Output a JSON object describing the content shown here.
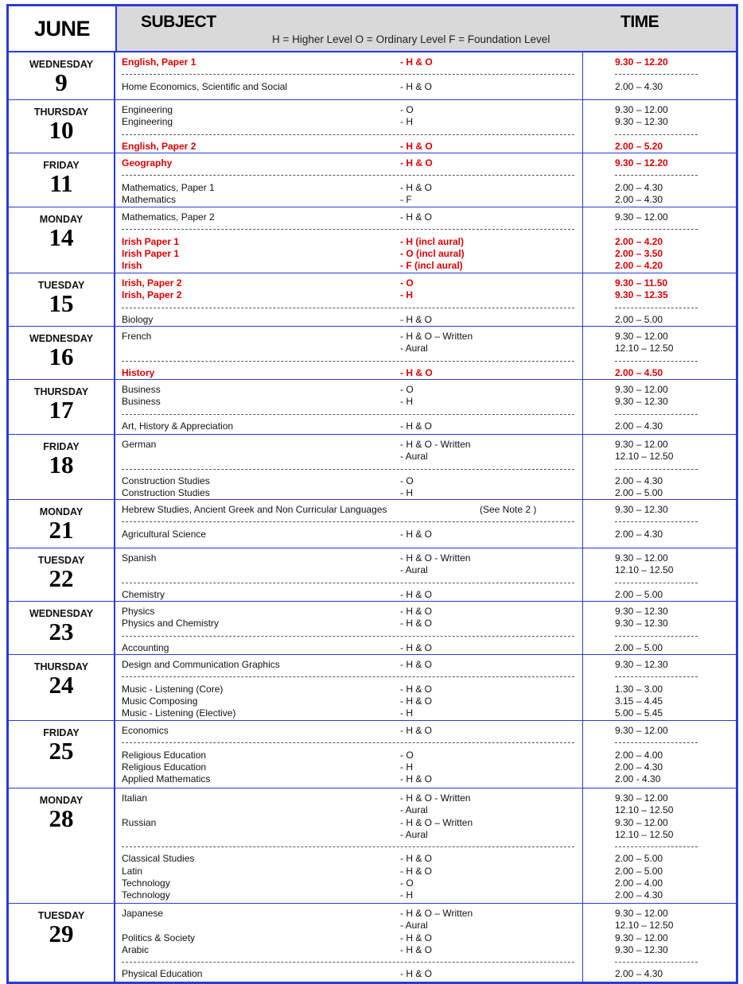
{
  "header": {
    "month": "JUNE",
    "subject": "SUBJECT",
    "time": "TIME",
    "legend": "H = Higher Level  O = Ordinary Level  F = Foundation Level"
  },
  "colors": {
    "border": "#2a3ad8",
    "header_bg": "#d9d9d9",
    "highlight": "#e00000"
  },
  "days": [
    {
      "name": "WEDNESDAY",
      "num": "9",
      "lines": [
        {
          "s": "English, Paper 1",
          "l": "- H & O",
          "t": "9.30 – 12.20",
          "red": true
        },
        {
          "sep": true
        },
        {
          "s": "Home Economics, Scientific and Social",
          "l": "- H & O",
          "t": "2.00 – 4.30"
        }
      ]
    },
    {
      "name": "THURSDAY",
      "num": "10",
      "lines": [
        {
          "s": "Engineering",
          "l": "- O",
          "t": "9.30 –  12.00"
        },
        {
          "s": "Engineering",
          "l": "- H",
          "t": "9.30 –  12.30"
        },
        {
          "sep": true
        },
        {
          "s": "English, Paper 2",
          "l": "- H & O",
          "t": "2.00 – 5.20",
          "red": true
        }
      ]
    },
    {
      "name": "FRIDAY",
      "num": "11",
      "lines": [
        {
          "s": "Geography",
          "l": "- H & O",
          "t": "9.30 – 12.20",
          "red": true
        },
        {
          "sep": true
        },
        {
          "s": "Mathematics, Paper 1",
          "l": "- H & O",
          "t": "2.00 – 4.30"
        },
        {
          "s": "Mathematics",
          "l": "- F",
          "t": "2.00 – 4.30"
        }
      ]
    },
    {
      "name": "MONDAY",
      "num": "14",
      "lines": [
        {
          "s": "Mathematics, Paper 2",
          "l": "- H & O",
          "t": "9.30 – 12.00"
        },
        {
          "sep": true
        },
        {
          "s": "Irish Paper 1",
          "l": "- H (incl aural)",
          "t": "2.00 – 4.20",
          "red": true
        },
        {
          "s": "Irish Paper 1",
          "l": "- O (incl aural)",
          "t": "2.00 – 3.50",
          "red": true
        },
        {
          "s": "Irish",
          "l": "- F (incl aural)",
          "t": "2.00 – 4.20",
          "red": true
        }
      ]
    },
    {
      "name": "TUESDAY",
      "num": "15",
      "lines": [
        {
          "s": "Irish, Paper 2",
          "l": "- O",
          "t": "9.30 – 11.50",
          "red": true
        },
        {
          "s": "Irish, Paper 2",
          "l": "- H",
          "t": "9.30 – 12.35",
          "red": true
        },
        {
          "sep": true
        },
        {
          "s": "Biology",
          "l": "- H & O",
          "t": "2.00 – 5.00"
        }
      ]
    },
    {
      "name": "WEDNESDAY",
      "num": "16",
      "lines": [
        {
          "s": "French",
          "l": "- H & O – Written",
          "t": "9.30 – 12.00"
        },
        {
          "s": "",
          "l": "- Aural",
          "t": "12.10 – 12.50"
        },
        {
          "sep": true
        },
        {
          "s": "History",
          "l": "- H & O",
          "t": "2.00 – 4.50",
          "red": true
        }
      ]
    },
    {
      "name": "THURSDAY",
      "num": "17",
      "lines": [
        {
          "s": "Business",
          "l": "- O",
          "t": "9.30 – 12.00"
        },
        {
          "s": "Business",
          "l": "- H",
          "t": "9.30 – 12.30"
        },
        {
          "sep": true
        },
        {
          "s": "Art, History & Appreciation",
          "l": "- H & O",
          "t": "2.00 – 4.30"
        }
      ]
    },
    {
      "name": "FRIDAY",
      "num": "18",
      "lines": [
        {
          "s": "German",
          "l": "- H & O - Written",
          "t": "9.30 – 12.00"
        },
        {
          "s": "",
          "l": "- Aural",
          "t": "12.10 – 12.50"
        },
        {
          "sep": true
        },
        {
          "s": "Construction Studies",
          "l": "- O",
          "t": "2.00 –  4.30"
        },
        {
          "s": "Construction Studies",
          "l": "- H",
          "t": "2.00 –  5.00"
        }
      ]
    },
    {
      "name": "MONDAY",
      "num": "21",
      "lines": [
        {
          "s": "Hebrew Studies, Ancient Greek and Non Curricular Languages",
          "l": "",
          "n": "(See Note 2 )",
          "t": "9.30 – 12.30"
        },
        {
          "sep": true
        },
        {
          "s": "Agricultural Science",
          "l": "- H & O",
          "t": "2.00 – 4.30"
        }
      ]
    },
    {
      "name": "TUESDAY",
      "num": "22",
      "lines": [
        {
          "s": "Spanish",
          "l": "- H & O - Written",
          "t": "9.30 – 12.00"
        },
        {
          "s": "",
          "l": "- Aural",
          "t": "12.10 – 12.50"
        },
        {
          "sep": true
        },
        {
          "s": "Chemistry",
          "l": "- H & O",
          "t": "2.00 – 5.00"
        }
      ]
    },
    {
      "name": "WEDNESDAY",
      "num": "23",
      "lines": [
        {
          "s": "Physics",
          "l": "- H & O",
          "t": "9.30 – 12.30"
        },
        {
          "s": "Physics and Chemistry",
          "l": "- H & O",
          "t": "9.30 – 12.30"
        },
        {
          "sep": true
        },
        {
          "s": "Accounting",
          "l": "- H & O",
          "t": "2.00 – 5.00"
        }
      ]
    },
    {
      "name": "THURSDAY",
      "num": "24",
      "lines": [
        {
          "s": "Design and Communication Graphics",
          "l": "- H & O",
          "t": "9.30 – 12.30"
        },
        {
          "sep": true
        },
        {
          "s": "Music - Listening (Core)",
          "l": "- H & O",
          "t": "1.30 – 3.00"
        },
        {
          "s": "Music Composing",
          "l": "- H & O",
          "t": "3.15 – 4.45"
        },
        {
          "s": "Music - Listening (Elective)",
          "l": "- H",
          "t": "5.00 – 5.45"
        }
      ]
    },
    {
      "name": "FRIDAY",
      "num": "25",
      "lines": [
        {
          "s": "Economics",
          "l": "- H & O",
          "t": "9.30 – 12.00"
        },
        {
          "sep": true
        },
        {
          "s": "Religious Education",
          "l": "- O",
          "t": "2.00 – 4.00"
        },
        {
          "s": "Religious Education",
          "l": "- H",
          "t": "2.00 – 4.30"
        },
        {
          "s": "Applied Mathematics",
          "l": "- H & O",
          "t": "2.00 - 4.30"
        }
      ]
    },
    {
      "name": "MONDAY",
      "num": "28",
      "lines": [
        {
          "s": "Italian",
          "l": "- H & O - Written",
          "t": "9.30 – 12.00"
        },
        {
          "s": "",
          "l": "- Aural",
          "t": "12.10 – 12.50"
        },
        {
          "s": "Russian",
          "l": "- H & O – Written",
          "t": "9.30 – 12.00"
        },
        {
          "s": "",
          "l": "- Aural",
          "t": "12.10 – 12.50"
        },
        {
          "sep": true
        },
        {
          "s": "Classical Studies",
          "l": "- H & O",
          "t": "2.00 – 5.00"
        },
        {
          "s": "Latin",
          "l": "- H & O",
          "t": "2.00 – 5.00"
        },
        {
          "s": "Technology",
          "l": "- O",
          "t": "2.00 – 4.00"
        },
        {
          "s": "Technology",
          "l": "- H",
          "t": "2.00 – 4.30"
        }
      ]
    },
    {
      "name": "TUESDAY",
      "num": "29",
      "lines": [
        {
          "s": "Japanese",
          "l": "- H & O – Written",
          "t": "9.30 – 12.00"
        },
        {
          "s": "",
          "l": "- Aural",
          "t": "12.10 – 12.50"
        },
        {
          "s": "Politics & Society",
          "l": "- H & O",
          "t": "9.30 – 12.00"
        },
        {
          "s": "Arabic",
          "l": "- H & O",
          "t": "9.30 – 12.30"
        },
        {
          "sep": true
        },
        {
          "s": "Physical Education",
          "l": "- H & O",
          "t": "2.00 – 4.30"
        }
      ]
    }
  ]
}
